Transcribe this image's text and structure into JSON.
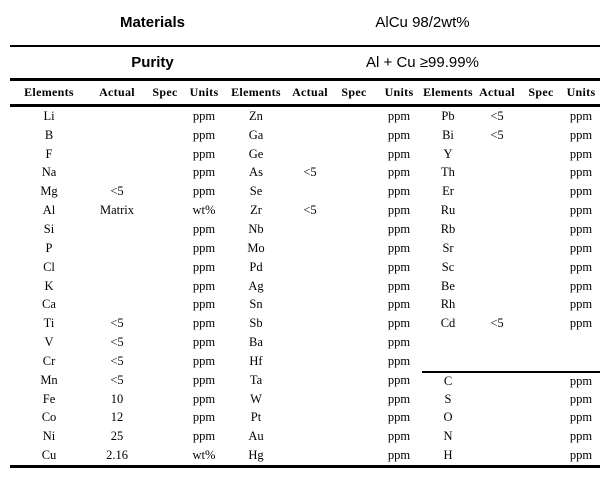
{
  "colors": {
    "background": "#ffffff",
    "text": "#000000",
    "rule": "#000000"
  },
  "header": {
    "materials_label": "Materials",
    "materials_value": "AlCu 98/2wt%",
    "purity_label": "Purity",
    "purity_value": "Al + Cu ≥99.99%"
  },
  "table": {
    "column_headers": [
      "Elements",
      "Actual",
      "Spec",
      "Units",
      "Elements",
      "Actual",
      "Spec",
      "Units",
      "Elements",
      "Actual",
      "Spec",
      "Units"
    ],
    "group3_section_divider_row": 14,
    "rows": [
      [
        "Li",
        "",
        "",
        "ppm",
        "Zn",
        "",
        "",
        "ppm",
        "Pb",
        "<5",
        "",
        "ppm"
      ],
      [
        "B",
        "",
        "",
        "ppm",
        "Ga",
        "",
        "",
        "ppm",
        "Bi",
        "<5",
        "",
        "ppm"
      ],
      [
        "F",
        "",
        "",
        "ppm",
        "Ge",
        "",
        "",
        "ppm",
        "Y",
        "",
        "",
        "ppm"
      ],
      [
        "Na",
        "",
        "",
        "ppm",
        "As",
        "<5",
        "",
        "ppm",
        "Th",
        "",
        "",
        "ppm"
      ],
      [
        "Mg",
        "<5",
        "",
        "ppm",
        "Se",
        "",
        "",
        "ppm",
        "Er",
        "",
        "",
        "ppm"
      ],
      [
        "Al",
        "Matrix",
        "",
        "wt%",
        "Zr",
        "<5",
        "",
        "ppm",
        "Ru",
        "",
        "",
        "ppm"
      ],
      [
        "Si",
        "",
        "",
        "ppm",
        "Nb",
        "",
        "",
        "ppm",
        "Rb",
        "",
        "",
        "ppm"
      ],
      [
        "P",
        "",
        "",
        "ppm",
        "Mo",
        "",
        "",
        "ppm",
        "Sr",
        "",
        "",
        "ppm"
      ],
      [
        "Cl",
        "",
        "",
        "ppm",
        "Pd",
        "",
        "",
        "ppm",
        "Sc",
        "",
        "",
        "ppm"
      ],
      [
        "K",
        "",
        "",
        "ppm",
        "Ag",
        "",
        "",
        "ppm",
        "Be",
        "",
        "",
        "ppm"
      ],
      [
        "Ca",
        "",
        "",
        "ppm",
        "Sn",
        "",
        "",
        "ppm",
        "Rh",
        "",
        "",
        "ppm"
      ],
      [
        "Ti",
        "<5",
        "",
        "ppm",
        "Sb",
        "",
        "",
        "ppm",
        "Cd",
        "<5",
        "",
        "ppm"
      ],
      [
        "V",
        "<5",
        "",
        "ppm",
        "Ba",
        "",
        "",
        "ppm",
        "",
        "",
        "",
        ""
      ],
      [
        "Cr",
        "<5",
        "",
        "ppm",
        "Hf",
        "",
        "",
        "ppm",
        "",
        "",
        "",
        ""
      ],
      [
        "Mn",
        "<5",
        "",
        "ppm",
        "Ta",
        "",
        "",
        "ppm",
        "C",
        "",
        "",
        "ppm"
      ],
      [
        "Fe",
        "10",
        "",
        "ppm",
        "W",
        "",
        "",
        "ppm",
        "S",
        "",
        "",
        "ppm"
      ],
      [
        "Co",
        "12",
        "",
        "ppm",
        "Pt",
        "",
        "",
        "ppm",
        "O",
        "",
        "",
        "ppm"
      ],
      [
        "Ni",
        "25",
        "",
        "ppm",
        "Au",
        "",
        "",
        "ppm",
        "N",
        "",
        "",
        "ppm"
      ],
      [
        "Cu",
        "2.16",
        "",
        "wt%",
        "Hg",
        "",
        "",
        "ppm",
        "H",
        "",
        "",
        "ppm"
      ]
    ]
  }
}
